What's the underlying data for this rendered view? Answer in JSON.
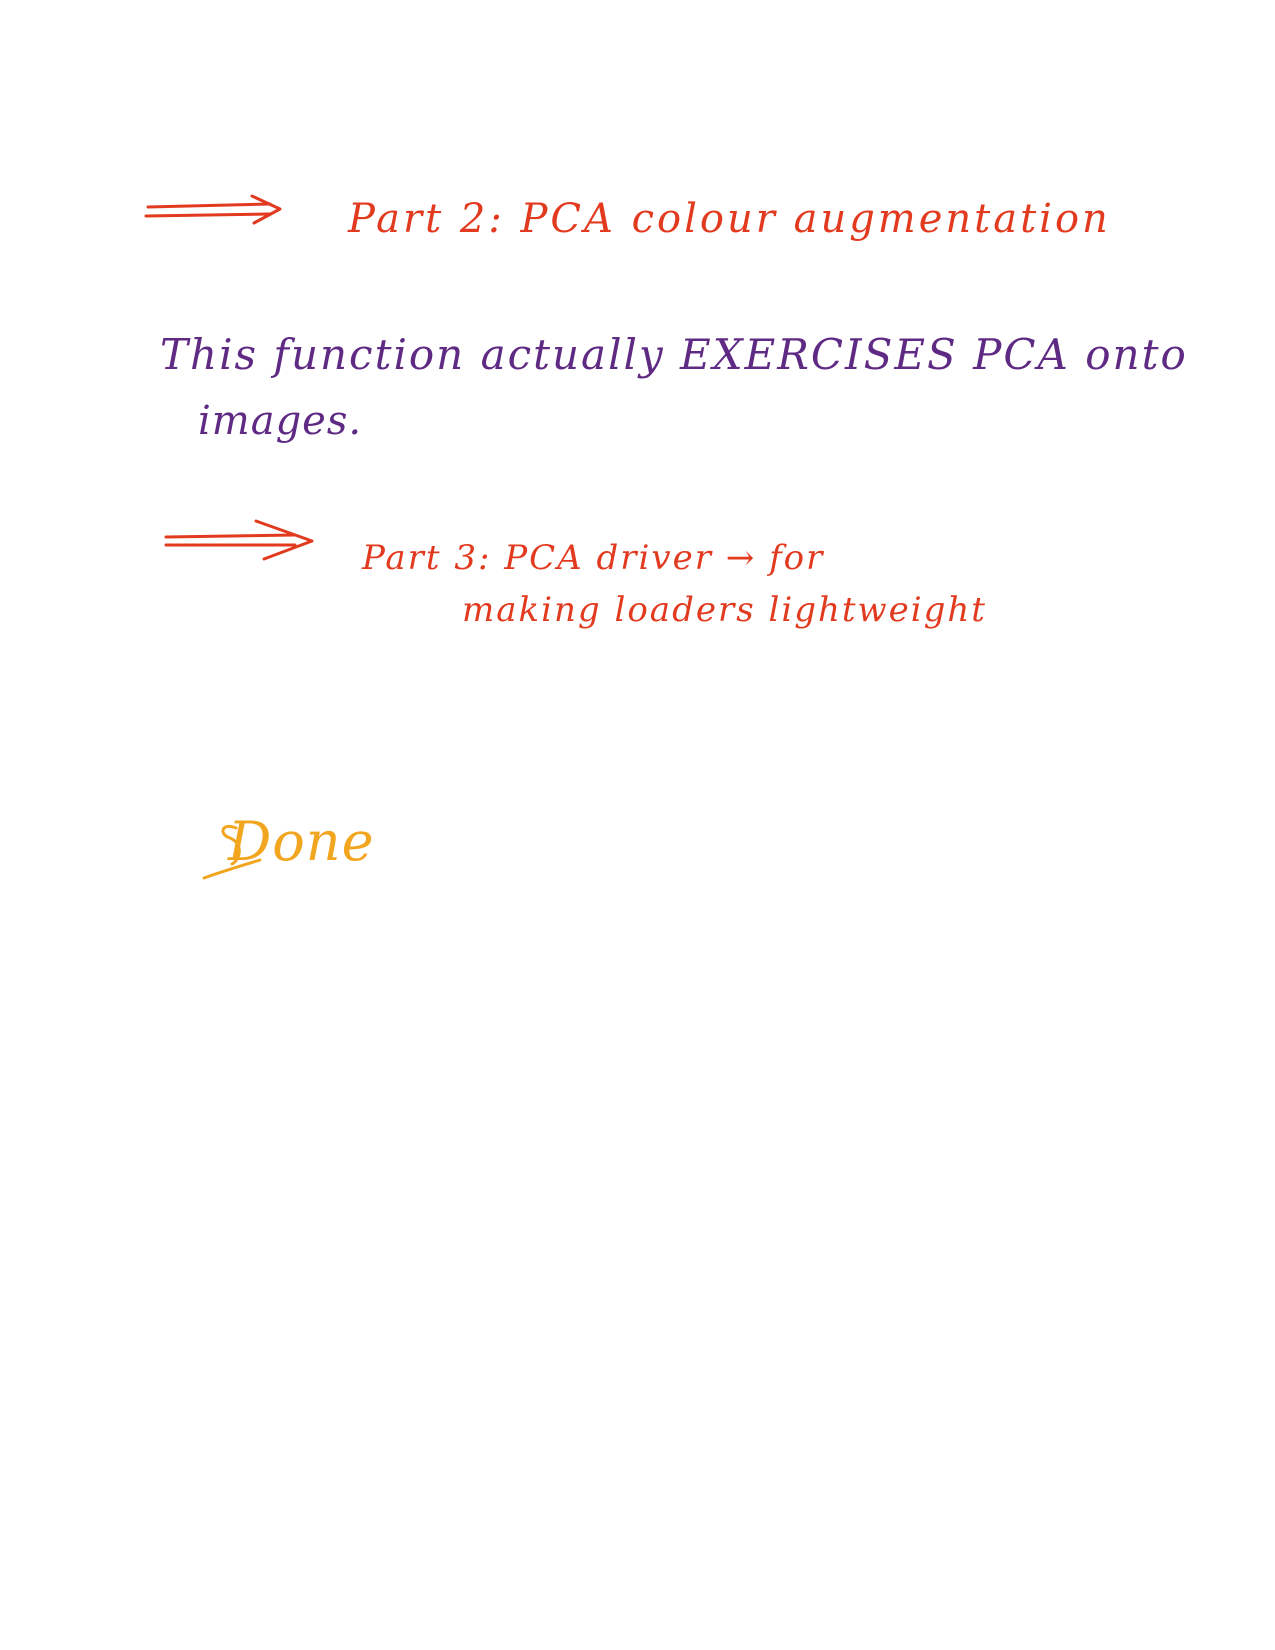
{
  "notes": {
    "part2": {
      "text": "Part 2: PCA colour augmentation",
      "color": "#e23a1f"
    },
    "description": {
      "line1": "This function actually EXERCISES PCA onto",
      "line2": "images.",
      "color": "#5f2a83"
    },
    "part3": {
      "line1": "Part 3: PCA driver → for",
      "line2": "making loaders lightweight",
      "color": "#e23a1f"
    },
    "done": {
      "text": "Done",
      "color": "#f2a51f"
    }
  }
}
